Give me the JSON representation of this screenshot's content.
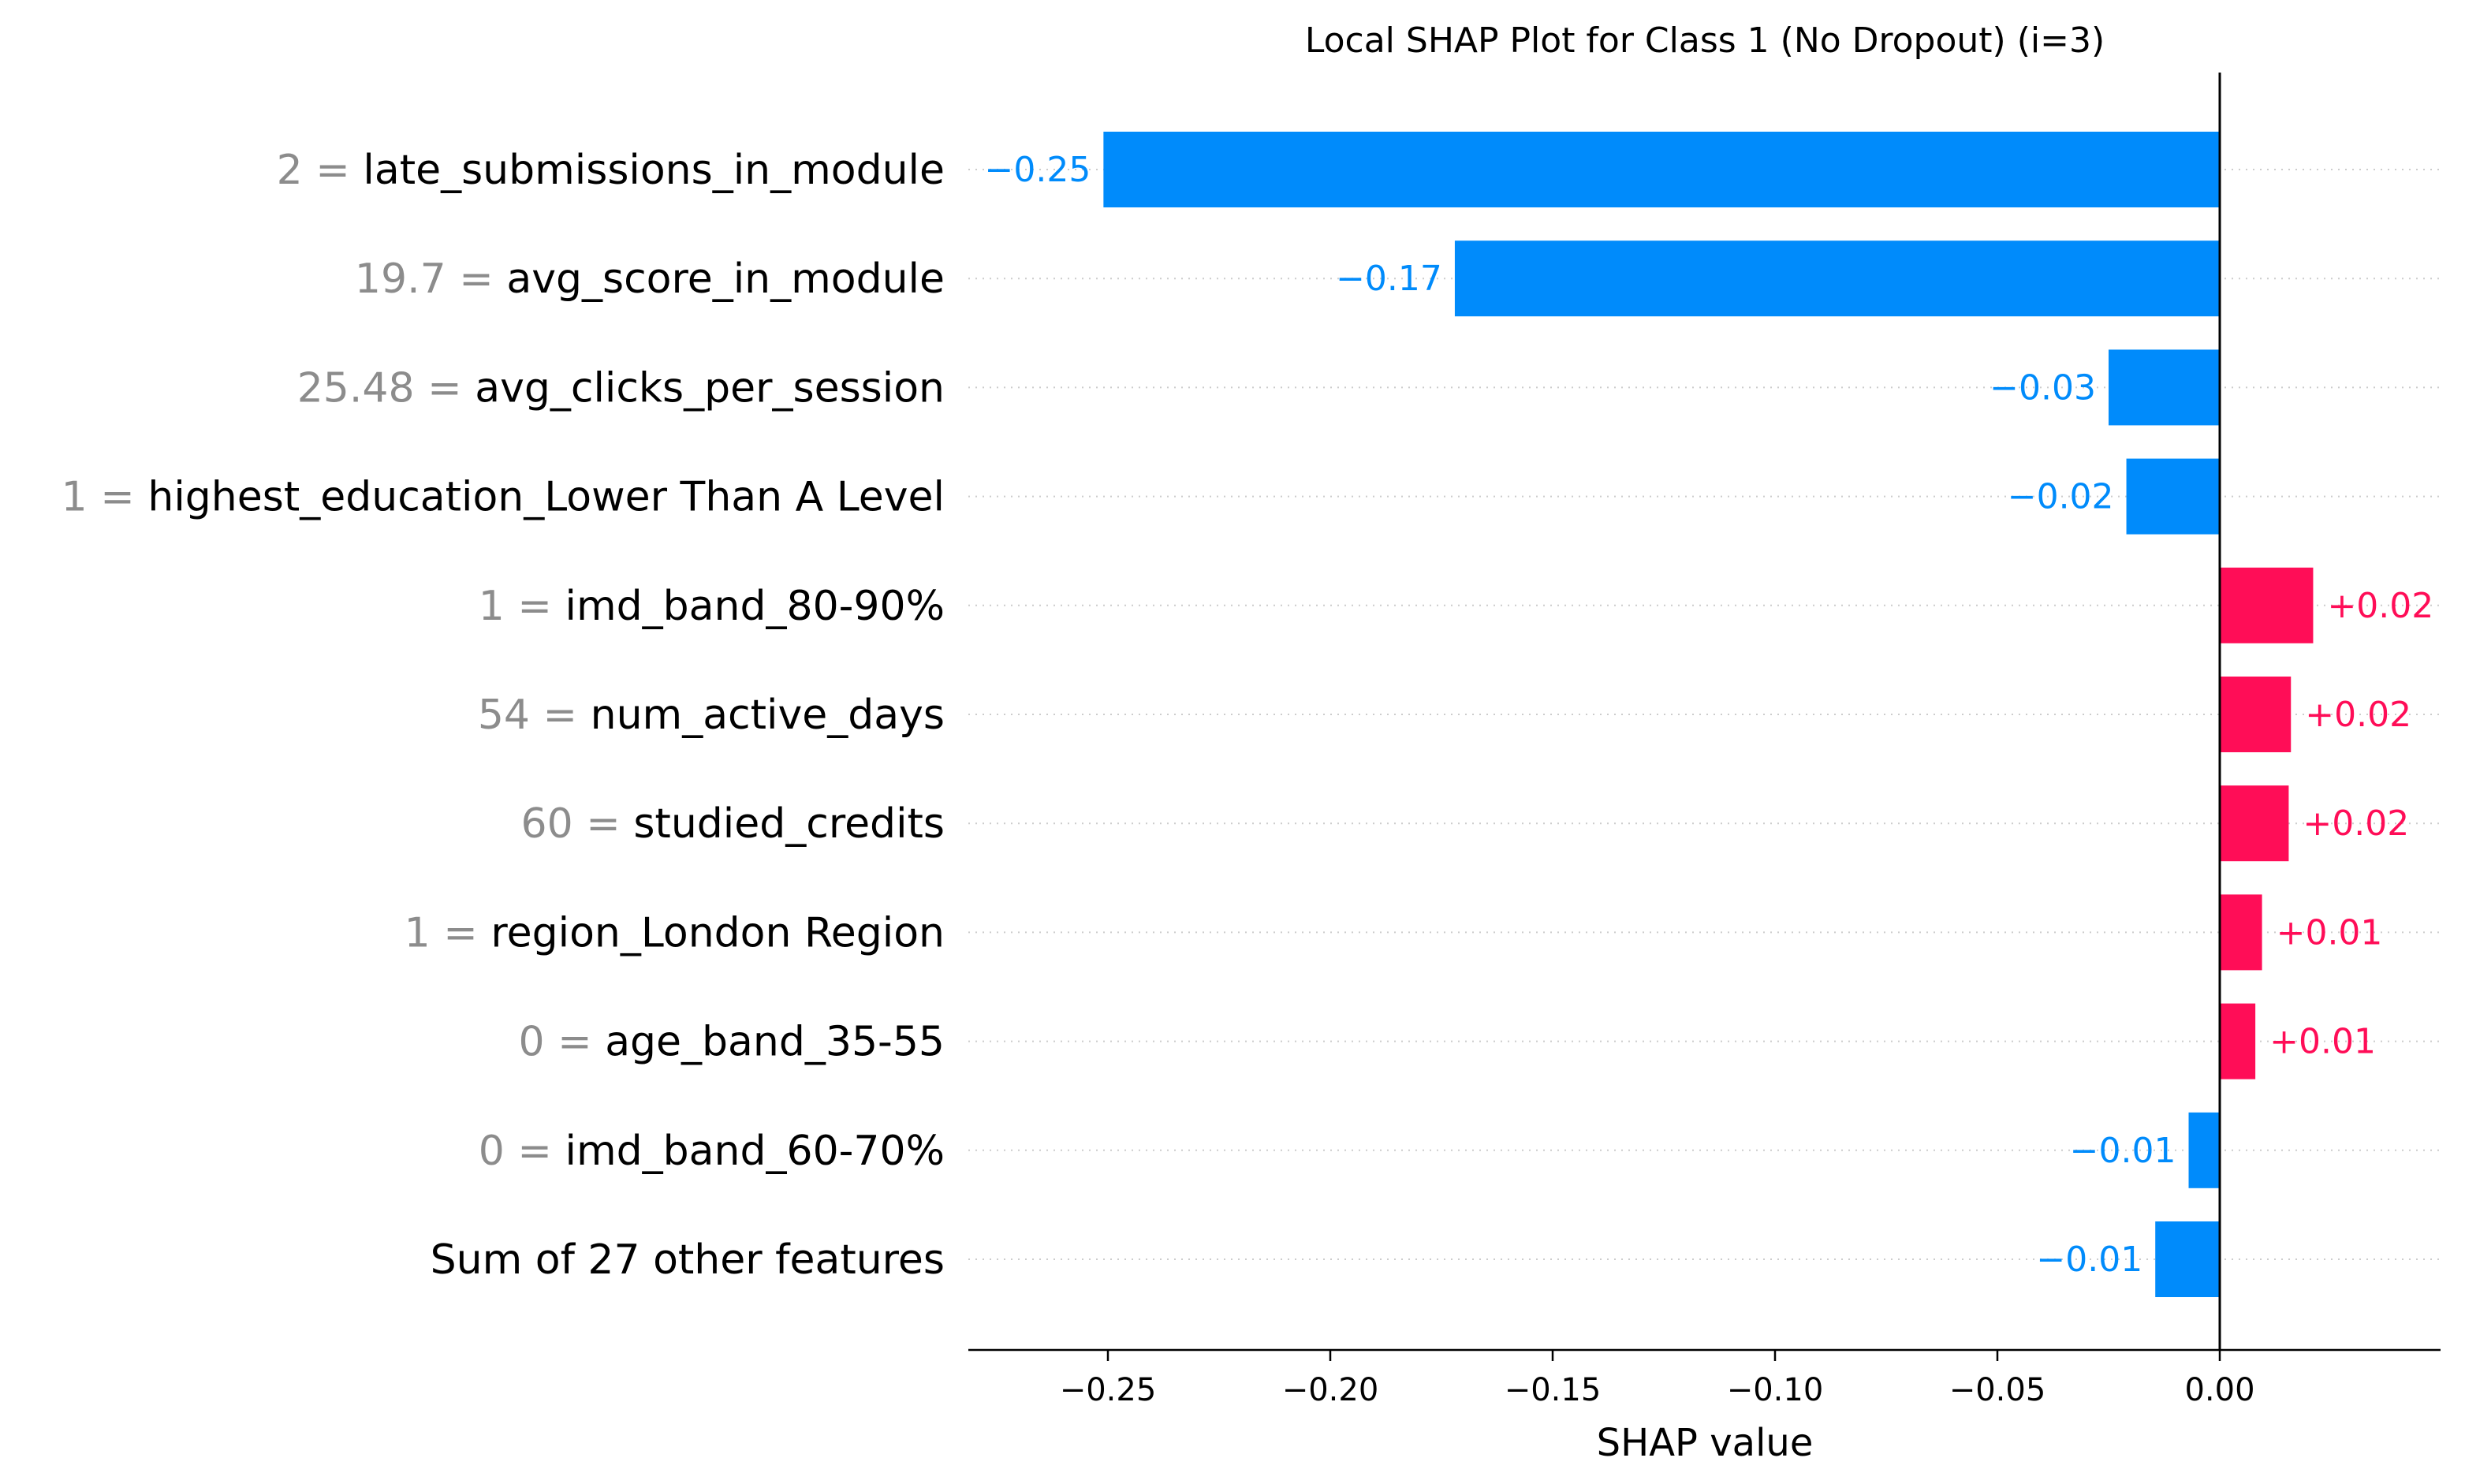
{
  "chart_data": {
    "type": "bar",
    "orientation": "horizontal",
    "title": "Local SHAP Plot for Class 1 (No Dropout) (i=3)",
    "xlabel": "SHAP value",
    "ylabel": "",
    "xlim": [
      -0.28,
      0.05
    ],
    "xticks": [
      -0.25,
      -0.2,
      -0.15,
      -0.1,
      -0.05,
      0.0
    ],
    "xtick_labels": [
      "−0.25",
      "−0.20",
      "−0.15",
      "−0.10",
      "−0.05",
      "0.00"
    ],
    "grid": "dotted horizontal per row",
    "colors": {
      "positive": "#ff0d57",
      "negative": "#008bfb",
      "feature_value": "#8c8c8c",
      "zero_line": "#000000",
      "grid": "#cccccc"
    },
    "features": [
      {
        "value_text": "2",
        "name": "late_submissions_in_module",
        "shap": -0.251,
        "label": "−0.25"
      },
      {
        "value_text": "19.7",
        "name": "avg_score_in_module",
        "shap": -0.172,
        "label": "−0.17"
      },
      {
        "value_text": "25.48",
        "name": "avg_clicks_per_session",
        "shap": -0.025,
        "label": "−0.03"
      },
      {
        "value_text": "1",
        "name": "highest_education_Lower Than A Level",
        "shap": -0.021,
        "label": "−0.02"
      },
      {
        "value_text": "1",
        "name": "imd_band_80-90%",
        "shap": 0.021,
        "label": "+0.02"
      },
      {
        "value_text": "54",
        "name": "num_active_days",
        "shap": 0.016,
        "label": "+0.02"
      },
      {
        "value_text": "60",
        "name": "studied_credits",
        "shap": 0.0155,
        "label": "+0.02"
      },
      {
        "value_text": "1",
        "name": "region_London Region",
        "shap": 0.0095,
        "label": "+0.01"
      },
      {
        "value_text": "0",
        "name": "age_band_35-55",
        "shap": 0.008,
        "label": "+0.01"
      },
      {
        "value_text": "0",
        "name": "imd_band_60-70%",
        "shap": -0.007,
        "label": "−0.01"
      },
      {
        "value_text": "",
        "name": "Sum of 27 other features",
        "shap": -0.0145,
        "label": "−0.01"
      }
    ]
  }
}
